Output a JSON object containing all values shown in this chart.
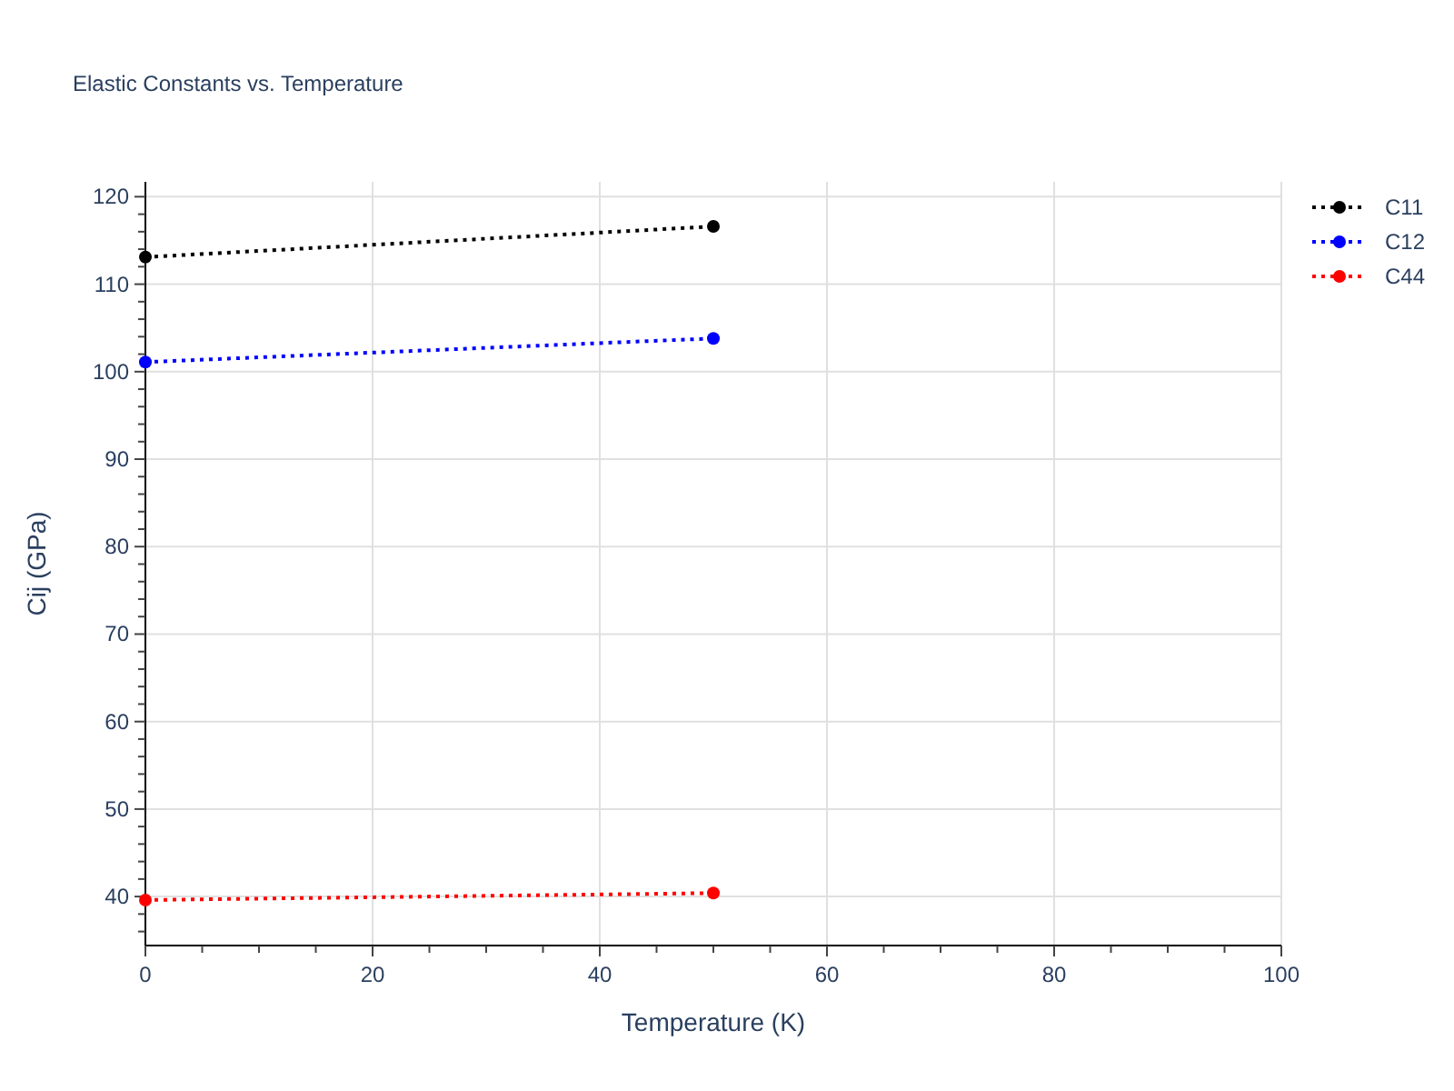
{
  "chart_data": {
    "type": "line",
    "title": "Elastic Constants vs. Temperature",
    "xlabel": "Temperature (K)",
    "ylabel": "Cij (GPa)",
    "x": [
      0,
      50
    ],
    "series": [
      {
        "name": "C11",
        "color": "#000000",
        "values": [
          113.1,
          116.6
        ]
      },
      {
        "name": "C12",
        "color": "#0000ff",
        "values": [
          101.1,
          103.8
        ]
      },
      {
        "name": "C44",
        "color": "#ff0000",
        "values": [
          39.6,
          40.4
        ]
      }
    ],
    "xlim": [
      0,
      100
    ],
    "ylim": [
      34.4,
      121.7
    ],
    "xticks": [
      0,
      {
        "value": 5,
        "label": null
      },
      {
        "value": 10,
        "label": null
      },
      {
        "value": 15,
        "label": null
      },
      20,
      {
        "value": 25,
        "label": null
      },
      {
        "value": 30,
        "label": null
      },
      {
        "value": 35,
        "label": null
      },
      40,
      {
        "value": 45,
        "label": null
      },
      {
        "value": 50,
        "label": null
      },
      {
        "value": 55,
        "label": null
      },
      60,
      {
        "value": 65,
        "label": null
      },
      {
        "value": 70,
        "label": null
      },
      {
        "value": 75,
        "label": null
      },
      80,
      {
        "value": 85,
        "label": null
      },
      {
        "value": 90,
        "label": null
      },
      {
        "value": 95,
        "label": null
      },
      100
    ],
    "yticks": [
      {
        "value": 36,
        "label": null
      },
      {
        "value": 38,
        "label": null
      },
      40,
      {
        "value": 42,
        "label": null
      },
      {
        "value": 44,
        "label": null
      },
      {
        "value": 46,
        "label": null
      },
      {
        "value": 48,
        "label": null
      },
      50,
      {
        "value": 52,
        "label": null
      },
      {
        "value": 54,
        "label": null
      },
      {
        "value": 56,
        "label": null
      },
      {
        "value": 58,
        "label": null
      },
      60,
      {
        "value": 62,
        "label": null
      },
      {
        "value": 64,
        "label": null
      },
      {
        "value": 66,
        "label": null
      },
      {
        "value": 68,
        "label": null
      },
      70,
      {
        "value": 72,
        "label": null
      },
      {
        "value": 74,
        "label": null
      },
      {
        "value": 76,
        "label": null
      },
      {
        "value": 78,
        "label": null
      },
      80,
      {
        "value": 82,
        "label": null
      },
      {
        "value": 84,
        "label": null
      },
      {
        "value": 86,
        "label": null
      },
      {
        "value": 88,
        "label": null
      },
      90,
      {
        "value": 92,
        "label": null
      },
      {
        "value": 94,
        "label": null
      },
      {
        "value": 96,
        "label": null
      },
      {
        "value": 98,
        "label": null
      },
      100,
      {
        "value": 102,
        "label": null
      },
      {
        "value": 104,
        "label": null
      },
      {
        "value": 106,
        "label": null
      },
      {
        "value": 108,
        "label": null
      },
      110,
      {
        "value": 112,
        "label": null
      },
      {
        "value": 114,
        "label": null
      },
      {
        "value": 116,
        "label": null
      },
      {
        "value": 118,
        "label": null
      },
      120
    ],
    "grid": true,
    "legend": "top right",
    "marker": "circle",
    "line_style": "dotted"
  }
}
